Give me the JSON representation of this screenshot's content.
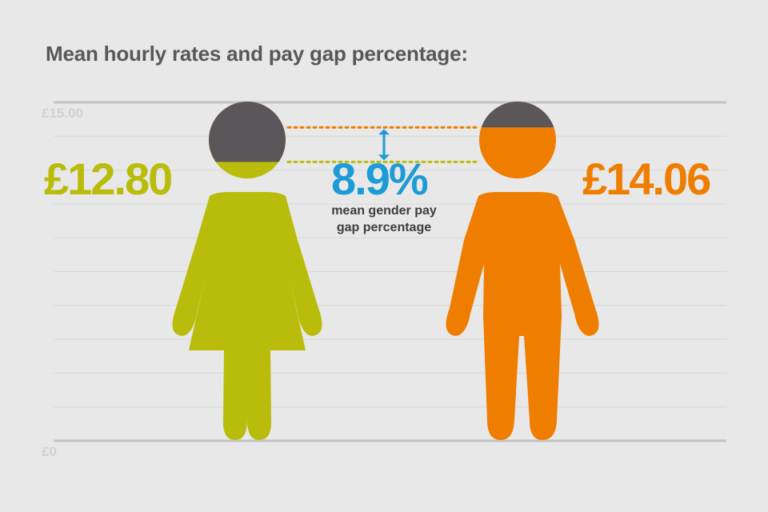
{
  "title": "Mean hourly rates and pay gap percentage:",
  "colors": {
    "background": "#e8e8e8",
    "women": "#b9bc0a",
    "men": "#ef7d00",
    "head_dark": "#5b5659",
    "gap": "#1d9bd7",
    "caption": "#3d3d3f",
    "grid": "#d8d8d8",
    "axis_line": "#c4c4c4",
    "tick_label": "#d2d2d2"
  },
  "gap": {
    "percentage": "8.9%",
    "caption": "mean gender pay gap percentage",
    "arrow_icon": "double-arrow-vertical-icon"
  },
  "chart_data": {
    "type": "bar",
    "title": "Mean hourly rates and pay gap percentage:",
    "categories": [
      "Women",
      "Men"
    ],
    "values": [
      12.8,
      14.06
    ],
    "value_labels": [
      "£12.80",
      "£14.06"
    ],
    "ylim": [
      0,
      15.0
    ],
    "tick_labels": [
      "£0",
      "£15.00"
    ],
    "grid": true,
    "icons": [
      "woman-figure-icon",
      "man-figure-icon"
    ]
  }
}
